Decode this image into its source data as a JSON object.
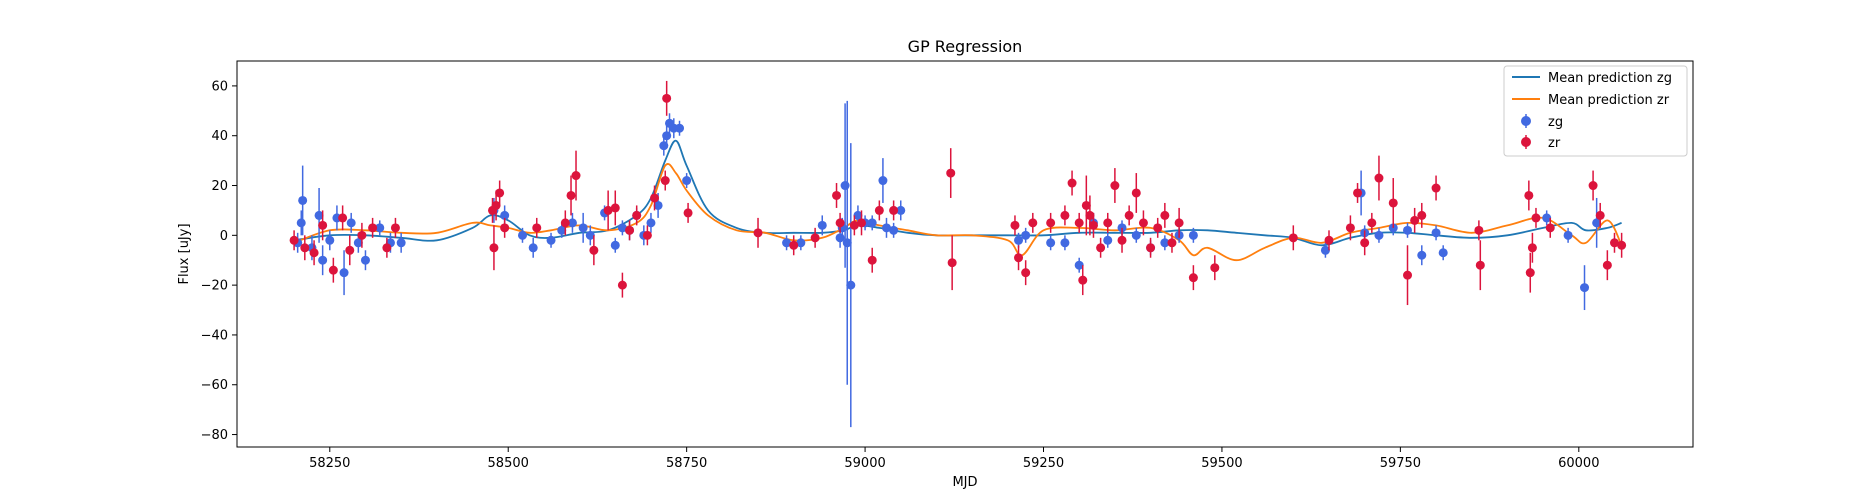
{
  "chart_data": {
    "type": "scatter",
    "title": "GP Regression",
    "xlabel": "MJD",
    "ylabel": "Flux [uJy]",
    "xlim": [
      58120,
      60160
    ],
    "ylim": [
      -85,
      70
    ],
    "xticks": [
      58250,
      58500,
      58750,
      59000,
      59250,
      59500,
      59750,
      60000
    ],
    "yticks": [
      -80,
      -60,
      -40,
      -20,
      0,
      20,
      40,
      60
    ],
    "grid": false,
    "legend_position": "top-right",
    "colors": {
      "zg_points": "#4169e1",
      "zr_points": "#dc143c",
      "zg_line": "#1f77b4",
      "zr_line": "#ff7f0e"
    },
    "lines": [
      {
        "name": "Mean prediction zg",
        "x": [
          58200,
          58250,
          58300,
          58350,
          58400,
          58450,
          58475,
          58500,
          58530,
          58560,
          58600,
          58640,
          58680,
          58700,
          58720,
          58735,
          58750,
          58780,
          58820,
          58860,
          58900,
          58940,
          58970,
          58990,
          59020,
          59060,
          59100,
          59150,
          59200,
          59250,
          59300,
          59350,
          59400,
          59440,
          59480,
          59520,
          59560,
          59600,
          59640,
          59680,
          59720,
          59760,
          59800,
          59850,
          59900,
          59950,
          59990,
          60010,
          60040,
          60060
        ],
        "y": [
          -2,
          0,
          0,
          -1,
          -2,
          3,
          8,
          6,
          0,
          -1,
          1,
          2,
          8,
          15,
          30,
          38,
          28,
          10,
          3,
          1,
          1,
          1,
          2,
          4,
          3,
          1,
          0,
          0,
          0,
          0,
          1,
          1,
          1,
          2,
          2,
          1,
          0,
          -1,
          -4,
          -1,
          1,
          1,
          0,
          -1,
          0,
          3,
          5,
          2,
          3,
          5
        ]
      },
      {
        "name": "Mean prediction zr",
        "x": [
          58200,
          58250,
          58300,
          58350,
          58400,
          58450,
          58475,
          58500,
          58530,
          58560,
          58600,
          58640,
          58680,
          58700,
          58720,
          58735,
          58750,
          58780,
          58820,
          58860,
          58900,
          58940,
          58970,
          58990,
          59020,
          59060,
          59100,
          59150,
          59200,
          59220,
          59250,
          59300,
          59350,
          59400,
          59440,
          59460,
          59480,
          59520,
          59560,
          59600,
          59640,
          59680,
          59720,
          59760,
          59800,
          59850,
          59900,
          59950,
          59990,
          60010,
          60040,
          60060
        ],
        "y": [
          -3,
          2,
          2,
          1,
          1,
          5,
          4,
          3,
          1,
          2,
          4,
          2,
          5,
          12,
          28,
          25,
          18,
          8,
          2,
          1,
          -2,
          -1,
          3,
          6,
          4,
          2,
          0,
          0,
          -2,
          -8,
          2,
          3,
          2,
          3,
          -2,
          -8,
          -5,
          -10,
          -5,
          -1,
          -3,
          1,
          3,
          5,
          4,
          1,
          4,
          7,
          0,
          -3,
          6,
          -4
        ]
      }
    ],
    "series": [
      {
        "name": "zg",
        "x": [
          58205,
          58210,
          58212,
          58225,
          58235,
          58240,
          58250,
          58260,
          58270,
          58280,
          58290,
          58300,
          58320,
          58335,
          58350,
          58480,
          58495,
          58520,
          58535,
          58560,
          58575,
          58590,
          58605,
          58615,
          58635,
          58650,
          58660,
          58670,
          58680,
          58690,
          58700,
          58710,
          58718,
          58722,
          58726,
          58732,
          58740,
          58750,
          58890,
          58910,
          58940,
          58965,
          58968,
          58972,
          58975,
          58980,
          58990,
          59000,
          59010,
          59025,
          59030,
          59040,
          59050,
          59215,
          59225,
          59260,
          59280,
          59300,
          59320,
          59340,
          59360,
          59380,
          59400,
          59420,
          59440,
          59460,
          59645,
          59695,
          59700,
          59720,
          59740,
          59760,
          59780,
          59800,
          59810,
          59955,
          59985,
          60008,
          60025
        ],
        "y": [
          -3,
          5,
          14,
          -5,
          8,
          -10,
          -2,
          7,
          -15,
          5,
          -3,
          -10,
          3,
          -3,
          -3,
          10,
          8,
          0,
          -5,
          -2,
          2,
          5,
          3,
          0,
          9,
          -4,
          3,
          2,
          8,
          0,
          5,
          12,
          36,
          40,
          45,
          43,
          43,
          22,
          -3,
          -3,
          4,
          -1,
          3,
          20,
          -3,
          -20,
          8,
          5,
          5,
          22,
          3,
          2,
          10,
          -2,
          0,
          -3,
          -3,
          -12,
          5,
          -2,
          3,
          0,
          -5,
          -3,
          0,
          0,
          -6,
          17,
          1,
          0,
          3,
          2,
          -8,
          1,
          -7,
          7,
          0,
          -21,
          5
        ],
        "err": [
          4,
          5,
          14,
          5,
          11,
          6,
          4,
          5,
          9,
          4,
          4,
          4,
          3,
          4,
          4,
          5,
          4,
          3,
          4,
          3,
          3,
          4,
          6,
          4,
          3,
          3,
          3,
          4,
          3,
          4,
          4,
          5,
          4,
          4,
          4,
          4,
          3,
          3,
          3,
          3,
          4,
          4,
          4,
          33,
          57,
          57,
          4,
          3,
          3,
          9,
          4,
          3,
          4,
          3,
          3,
          3,
          3,
          3,
          4,
          3,
          3,
          3,
          3,
          3,
          3,
          3,
          3,
          9,
          3,
          3,
          3,
          3,
          4,
          3,
          3,
          3,
          3,
          9,
          10
        ]
      },
      {
        "name": "zr",
        "x": [
          58200,
          58215,
          58228,
          58240,
          58255,
          58268,
          58278,
          58295,
          58310,
          58330,
          58342,
          58478,
          58480,
          58483,
          58488,
          58495,
          58540,
          58580,
          58588,
          58595,
          58620,
          58640,
          58650,
          58660,
          58670,
          58680,
          58695,
          58705,
          58720,
          58722,
          58752,
          58850,
          58900,
          58930,
          58960,
          58965,
          58985,
          58995,
          59010,
          59020,
          59040,
          59120,
          59122,
          59210,
          59215,
          59225,
          59235,
          59260,
          59280,
          59290,
          59300,
          59305,
          59310,
          59315,
          59320,
          59330,
          59340,
          59350,
          59360,
          59370,
          59380,
          59390,
          59400,
          59410,
          59420,
          59430,
          59440,
          59460,
          59490,
          59600,
          59650,
          59680,
          59690,
          59700,
          59710,
          59720,
          59740,
          59760,
          59770,
          59780,
          59800,
          59860,
          59862,
          59930,
          59932,
          59935,
          59940,
          59960,
          60020,
          60030,
          60040,
          60050,
          60060
        ],
        "y": [
          -2,
          -5,
          -7,
          4,
          -14,
          7,
          -6,
          0,
          3,
          -5,
          3,
          10,
          -5,
          12,
          17,
          3,
          3,
          5,
          16,
          24,
          -6,
          10,
          11,
          -20,
          2,
          8,
          0,
          15,
          22,
          55,
          9,
          1,
          -4,
          -1,
          16,
          5,
          4,
          5,
          -10,
          10,
          10,
          25,
          -11,
          4,
          -9,
          -15,
          5,
          5,
          8,
          21,
          5,
          -18,
          12,
          8,
          4,
          -5,
          5,
          20,
          -2,
          8,
          17,
          5,
          -5,
          3,
          8,
          -3,
          5,
          -17,
          -13,
          -1,
          -2,
          3,
          17,
          -3,
          5,
          23,
          13,
          -16,
          6,
          8,
          19,
          2,
          -12,
          16,
          -15,
          -5,
          7,
          3,
          20,
          8,
          -12,
          -3,
          -4
        ],
        "err": [
          4,
          5,
          5,
          6,
          5,
          5,
          6,
          5,
          4,
          4,
          4,
          5,
          9,
          6,
          5,
          4,
          4,
          5,
          8,
          10,
          6,
          8,
          7,
          5,
          4,
          4,
          4,
          5,
          4,
          7,
          4,
          6,
          4,
          4,
          5,
          4,
          4,
          5,
          5,
          4,
          4,
          10,
          11,
          4,
          5,
          5,
          4,
          4,
          4,
          5,
          4,
          6,
          12,
          8,
          5,
          4,
          4,
          7,
          5,
          4,
          8,
          5,
          4,
          4,
          5,
          4,
          6,
          5,
          5,
          5,
          4,
          5,
          4,
          5,
          4,
          9,
          10,
          12,
          5,
          5,
          5,
          4,
          10,
          6,
          8,
          6,
          4,
          4,
          6,
          5,
          6,
          4,
          5
        ]
      }
    ]
  }
}
